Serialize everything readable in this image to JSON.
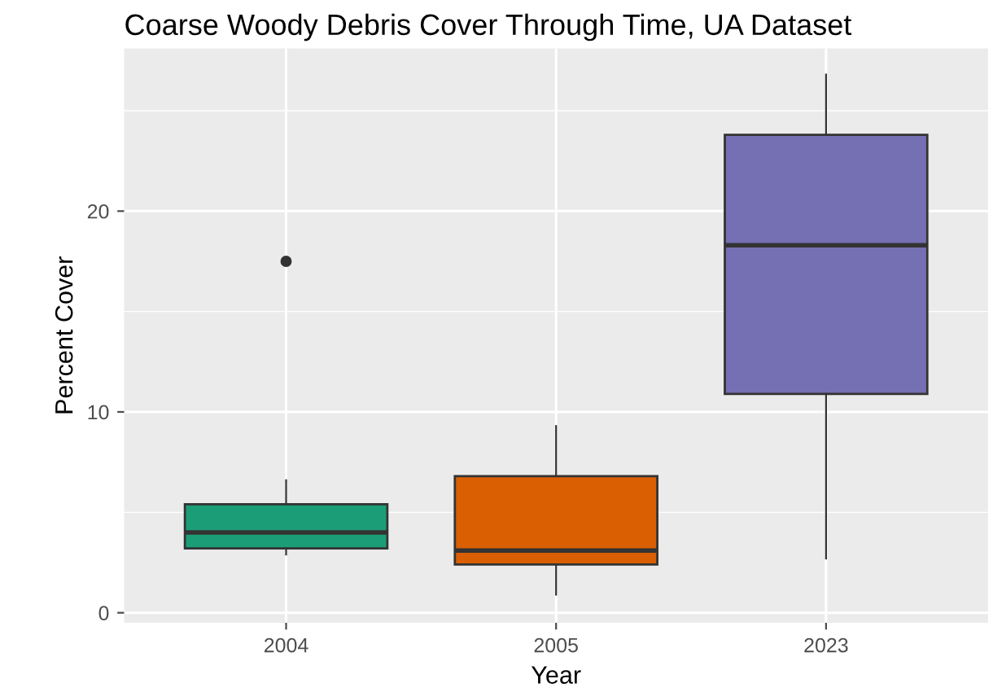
{
  "chart_data": {
    "type": "box",
    "title": "Coarse Woody Debris Cover Through Time, UA Dataset",
    "xlabel": "Year",
    "ylabel": "Percent Cover",
    "categories": [
      "2004",
      "2005",
      "2023"
    ],
    "boxes": [
      {
        "low": 2.9,
        "q1": 3.2,
        "median": 4.0,
        "q3": 5.4,
        "high": 6.6,
        "outliers": [
          17.5
        ]
      },
      {
        "low": 0.9,
        "q1": 2.4,
        "median": 3.1,
        "q3": 6.8,
        "high": 9.3
      },
      {
        "low": 2.7,
        "q1": 10.9,
        "median": 18.3,
        "q3": 23.8,
        "high": 26.8
      }
    ],
    "colors": [
      "#1b9e77",
      "#d95f02",
      "#7570b3"
    ],
    "ylim": [
      -0.5,
      28.1
    ],
    "yticks": [
      0,
      10,
      20
    ],
    "grid": true,
    "legend": false
  }
}
